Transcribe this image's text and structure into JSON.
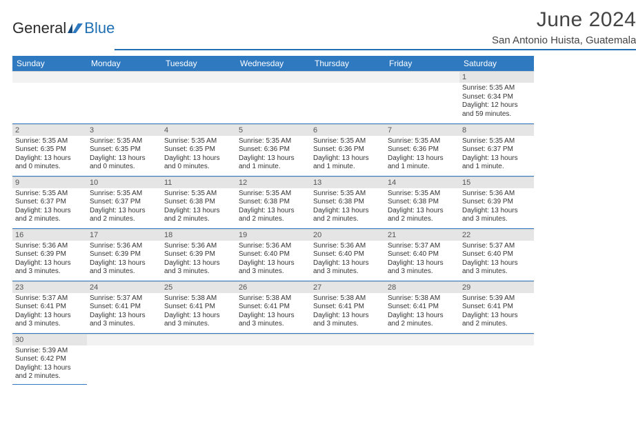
{
  "logo": {
    "partA": "General",
    "partB": "Blue"
  },
  "header": {
    "monthTitle": "June 2024",
    "location": "San Antonio Huista, Guatemala"
  },
  "colors": {
    "headerBar": "#2f79c1",
    "dayNumBg": "#e5e5e5",
    "rowBorder": "#2f79c1"
  },
  "dayHeaders": [
    "Sunday",
    "Monday",
    "Tuesday",
    "Wednesday",
    "Thursday",
    "Friday",
    "Saturday"
  ],
  "weeks": [
    [
      {
        "n": "",
        "sr": "",
        "ss": "",
        "dl": ""
      },
      {
        "n": "",
        "sr": "",
        "ss": "",
        "dl": ""
      },
      {
        "n": "",
        "sr": "",
        "ss": "",
        "dl": ""
      },
      {
        "n": "",
        "sr": "",
        "ss": "",
        "dl": ""
      },
      {
        "n": "",
        "sr": "",
        "ss": "",
        "dl": ""
      },
      {
        "n": "",
        "sr": "",
        "ss": "",
        "dl": ""
      },
      {
        "n": "1",
        "sr": "Sunrise: 5:35 AM",
        "ss": "Sunset: 6:34 PM",
        "dl": "Daylight: 12 hours and 59 minutes."
      }
    ],
    [
      {
        "n": "2",
        "sr": "Sunrise: 5:35 AM",
        "ss": "Sunset: 6:35 PM",
        "dl": "Daylight: 13 hours and 0 minutes."
      },
      {
        "n": "3",
        "sr": "Sunrise: 5:35 AM",
        "ss": "Sunset: 6:35 PM",
        "dl": "Daylight: 13 hours and 0 minutes."
      },
      {
        "n": "4",
        "sr": "Sunrise: 5:35 AM",
        "ss": "Sunset: 6:35 PM",
        "dl": "Daylight: 13 hours and 0 minutes."
      },
      {
        "n": "5",
        "sr": "Sunrise: 5:35 AM",
        "ss": "Sunset: 6:36 PM",
        "dl": "Daylight: 13 hours and 1 minute."
      },
      {
        "n": "6",
        "sr": "Sunrise: 5:35 AM",
        "ss": "Sunset: 6:36 PM",
        "dl": "Daylight: 13 hours and 1 minute."
      },
      {
        "n": "7",
        "sr": "Sunrise: 5:35 AM",
        "ss": "Sunset: 6:36 PM",
        "dl": "Daylight: 13 hours and 1 minute."
      },
      {
        "n": "8",
        "sr": "Sunrise: 5:35 AM",
        "ss": "Sunset: 6:37 PM",
        "dl": "Daylight: 13 hours and 1 minute."
      }
    ],
    [
      {
        "n": "9",
        "sr": "Sunrise: 5:35 AM",
        "ss": "Sunset: 6:37 PM",
        "dl": "Daylight: 13 hours and 2 minutes."
      },
      {
        "n": "10",
        "sr": "Sunrise: 5:35 AM",
        "ss": "Sunset: 6:37 PM",
        "dl": "Daylight: 13 hours and 2 minutes."
      },
      {
        "n": "11",
        "sr": "Sunrise: 5:35 AM",
        "ss": "Sunset: 6:38 PM",
        "dl": "Daylight: 13 hours and 2 minutes."
      },
      {
        "n": "12",
        "sr": "Sunrise: 5:35 AM",
        "ss": "Sunset: 6:38 PM",
        "dl": "Daylight: 13 hours and 2 minutes."
      },
      {
        "n": "13",
        "sr": "Sunrise: 5:35 AM",
        "ss": "Sunset: 6:38 PM",
        "dl": "Daylight: 13 hours and 2 minutes."
      },
      {
        "n": "14",
        "sr": "Sunrise: 5:35 AM",
        "ss": "Sunset: 6:38 PM",
        "dl": "Daylight: 13 hours and 2 minutes."
      },
      {
        "n": "15",
        "sr": "Sunrise: 5:36 AM",
        "ss": "Sunset: 6:39 PM",
        "dl": "Daylight: 13 hours and 3 minutes."
      }
    ],
    [
      {
        "n": "16",
        "sr": "Sunrise: 5:36 AM",
        "ss": "Sunset: 6:39 PM",
        "dl": "Daylight: 13 hours and 3 minutes."
      },
      {
        "n": "17",
        "sr": "Sunrise: 5:36 AM",
        "ss": "Sunset: 6:39 PM",
        "dl": "Daylight: 13 hours and 3 minutes."
      },
      {
        "n": "18",
        "sr": "Sunrise: 5:36 AM",
        "ss": "Sunset: 6:39 PM",
        "dl": "Daylight: 13 hours and 3 minutes."
      },
      {
        "n": "19",
        "sr": "Sunrise: 5:36 AM",
        "ss": "Sunset: 6:40 PM",
        "dl": "Daylight: 13 hours and 3 minutes."
      },
      {
        "n": "20",
        "sr": "Sunrise: 5:36 AM",
        "ss": "Sunset: 6:40 PM",
        "dl": "Daylight: 13 hours and 3 minutes."
      },
      {
        "n": "21",
        "sr": "Sunrise: 5:37 AM",
        "ss": "Sunset: 6:40 PM",
        "dl": "Daylight: 13 hours and 3 minutes."
      },
      {
        "n": "22",
        "sr": "Sunrise: 5:37 AM",
        "ss": "Sunset: 6:40 PM",
        "dl": "Daylight: 13 hours and 3 minutes."
      }
    ],
    [
      {
        "n": "23",
        "sr": "Sunrise: 5:37 AM",
        "ss": "Sunset: 6:41 PM",
        "dl": "Daylight: 13 hours and 3 minutes."
      },
      {
        "n": "24",
        "sr": "Sunrise: 5:37 AM",
        "ss": "Sunset: 6:41 PM",
        "dl": "Daylight: 13 hours and 3 minutes."
      },
      {
        "n": "25",
        "sr": "Sunrise: 5:38 AM",
        "ss": "Sunset: 6:41 PM",
        "dl": "Daylight: 13 hours and 3 minutes."
      },
      {
        "n": "26",
        "sr": "Sunrise: 5:38 AM",
        "ss": "Sunset: 6:41 PM",
        "dl": "Daylight: 13 hours and 3 minutes."
      },
      {
        "n": "27",
        "sr": "Sunrise: 5:38 AM",
        "ss": "Sunset: 6:41 PM",
        "dl": "Daylight: 13 hours and 3 minutes."
      },
      {
        "n": "28",
        "sr": "Sunrise: 5:38 AM",
        "ss": "Sunset: 6:41 PM",
        "dl": "Daylight: 13 hours and 2 minutes."
      },
      {
        "n": "29",
        "sr": "Sunrise: 5:39 AM",
        "ss": "Sunset: 6:41 PM",
        "dl": "Daylight: 13 hours and 2 minutes."
      }
    ],
    [
      {
        "n": "30",
        "sr": "Sunrise: 5:39 AM",
        "ss": "Sunset: 6:42 PM",
        "dl": "Daylight: 13 hours and 2 minutes."
      },
      {
        "n": "",
        "sr": "",
        "ss": "",
        "dl": ""
      },
      {
        "n": "",
        "sr": "",
        "ss": "",
        "dl": ""
      },
      {
        "n": "",
        "sr": "",
        "ss": "",
        "dl": ""
      },
      {
        "n": "",
        "sr": "",
        "ss": "",
        "dl": ""
      },
      {
        "n": "",
        "sr": "",
        "ss": "",
        "dl": ""
      },
      {
        "n": "",
        "sr": "",
        "ss": "",
        "dl": ""
      }
    ]
  ]
}
